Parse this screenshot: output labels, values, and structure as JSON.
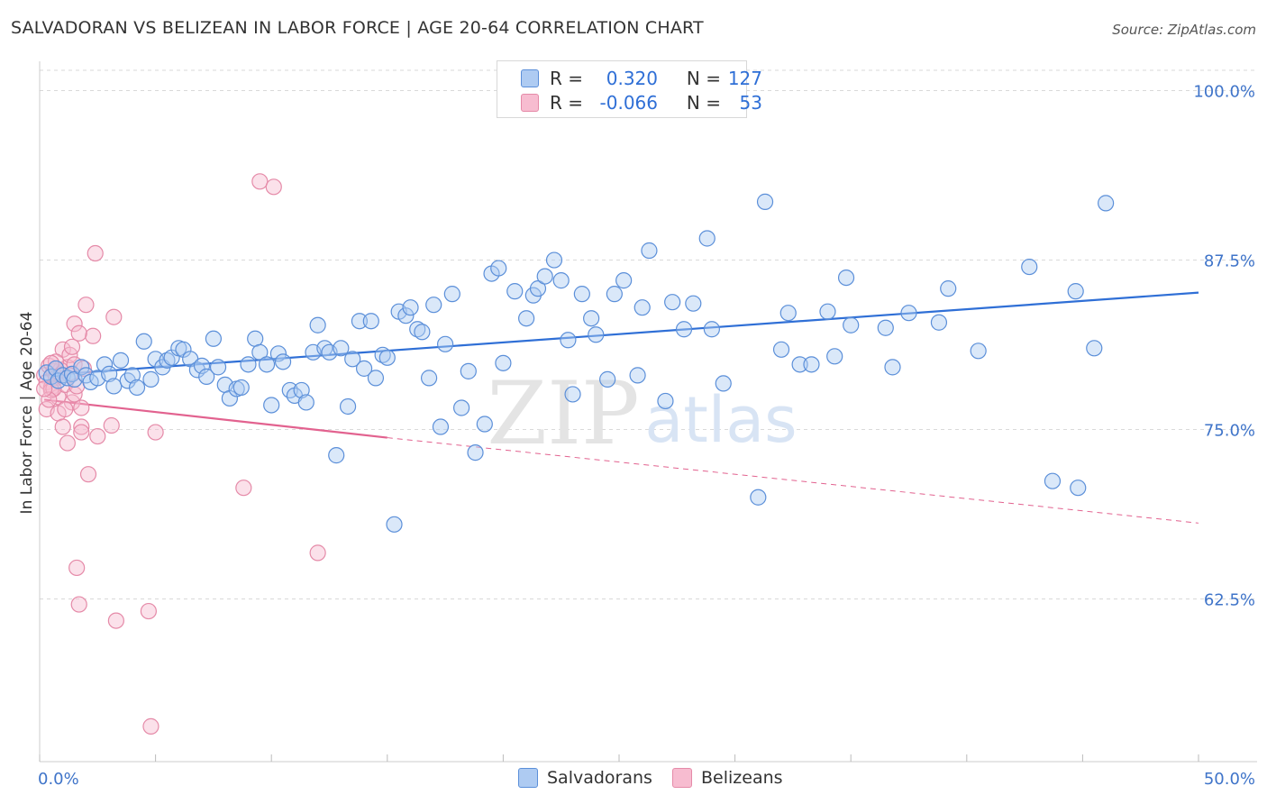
{
  "header": {
    "title": "SALVADORAN VS BELIZEAN IN LABOR FORCE | AGE 20-64 CORRELATION CHART",
    "source": "Source: ZipAtlas.com"
  },
  "legend": {
    "rows": [
      {
        "r_label": "R =",
        "r_value": "0.320",
        "n_label": "N =",
        "n_value": "127",
        "color": "#a9c7f0"
      },
      {
        "r_label": "R =",
        "r_value": "-0.066",
        "n_label": "N =",
        "n_value": "53",
        "color": "#f6b8cb"
      }
    ]
  },
  "watermark": {
    "zip": "ZIP",
    "atlas": "atlas"
  },
  "colors": {
    "blue_fill": "#aecbf2",
    "blue_stroke": "#5b8fd9",
    "blue_line": "#2f6fd6",
    "pink_fill": "#f7bcd0",
    "pink_stroke": "#e58aa8",
    "pink_line": "#e2628f",
    "axis_text": "#3f74c9",
    "grid": "#d9d9d9"
  },
  "chart_data": {
    "type": "scatter",
    "title": "SALVADORAN VS BELIZEAN IN LABOR FORCE | AGE 20-64 CORRELATION CHART",
    "xlabel": "",
    "ylabel": "In Labor Force | Age 20-64",
    "xlim": [
      0,
      50
    ],
    "ylim": [
      50.5,
      101.5
    ],
    "x_tick_labels": [
      "0.0%",
      "50.0%"
    ],
    "y_ticks": [
      62.5,
      75.0,
      87.5,
      100.0
    ],
    "y_tick_labels": [
      "62.5%",
      "75.0%",
      "87.5%",
      "100.0%"
    ],
    "grid": true,
    "legend_position": "top-center",
    "series": [
      {
        "name": "Salvadorans",
        "r": 0.32,
        "n": 127,
        "trend": {
          "x": [
            0.2,
            50
          ],
          "y": [
            79.0,
            85.1
          ]
        },
        "points": [
          [
            0.3,
            79.2
          ],
          [
            0.5,
            78.9
          ],
          [
            0.7,
            79.5
          ],
          [
            0.8,
            78.6
          ],
          [
            1.0,
            79.0
          ],
          [
            1.2,
            78.8
          ],
          [
            1.4,
            79.1
          ],
          [
            1.5,
            78.7
          ],
          [
            1.8,
            79.6
          ],
          [
            2.0,
            79.0
          ],
          [
            2.2,
            78.5
          ],
          [
            2.5,
            78.8
          ],
          [
            2.8,
            79.8
          ],
          [
            3.0,
            79.1
          ],
          [
            3.2,
            78.2
          ],
          [
            3.5,
            80.1
          ],
          [
            3.8,
            78.6
          ],
          [
            4.0,
            79.0
          ],
          [
            4.2,
            78.1
          ],
          [
            4.5,
            81.5
          ],
          [
            4.8,
            78.7
          ],
          [
            5.0,
            80.2
          ],
          [
            5.3,
            79.6
          ],
          [
            5.5,
            80.1
          ],
          [
            5.7,
            80.3
          ],
          [
            6.0,
            81.0
          ],
          [
            6.2,
            80.9
          ],
          [
            6.5,
            80.2
          ],
          [
            6.8,
            79.4
          ],
          [
            7.0,
            79.7
          ],
          [
            7.2,
            78.9
          ],
          [
            7.5,
            81.7
          ],
          [
            7.7,
            79.6
          ],
          [
            8.0,
            78.3
          ],
          [
            8.2,
            77.3
          ],
          [
            8.5,
            78.0
          ],
          [
            8.7,
            78.1
          ],
          [
            9.0,
            79.8
          ],
          [
            9.3,
            81.7
          ],
          [
            9.5,
            80.7
          ],
          [
            9.8,
            79.8
          ],
          [
            10.0,
            76.8
          ],
          [
            10.3,
            80.6
          ],
          [
            10.5,
            80.0
          ],
          [
            10.8,
            77.9
          ],
          [
            11.0,
            77.5
          ],
          [
            11.3,
            77.9
          ],
          [
            11.5,
            77.0
          ],
          [
            11.8,
            80.7
          ],
          [
            12.0,
            82.7
          ],
          [
            12.3,
            81.0
          ],
          [
            12.5,
            80.7
          ],
          [
            12.8,
            73.1
          ],
          [
            13.0,
            81.0
          ],
          [
            13.3,
            76.7
          ],
          [
            13.5,
            80.2
          ],
          [
            13.8,
            83.0
          ],
          [
            14.0,
            79.5
          ],
          [
            14.3,
            83.0
          ],
          [
            14.5,
            78.8
          ],
          [
            14.8,
            80.5
          ],
          [
            15.0,
            80.3
          ],
          [
            15.3,
            68.0
          ],
          [
            15.5,
            83.7
          ],
          [
            15.8,
            83.4
          ],
          [
            16.0,
            84.0
          ],
          [
            16.3,
            82.4
          ],
          [
            16.5,
            82.2
          ],
          [
            16.8,
            78.8
          ],
          [
            17.0,
            84.2
          ],
          [
            17.3,
            75.2
          ],
          [
            17.5,
            81.3
          ],
          [
            17.8,
            85.0
          ],
          [
            18.2,
            76.6
          ],
          [
            18.5,
            79.3
          ],
          [
            18.8,
            73.3
          ],
          [
            19.2,
            75.4
          ],
          [
            19.5,
            86.5
          ],
          [
            19.8,
            86.9
          ],
          [
            20.0,
            79.9
          ],
          [
            20.5,
            85.2
          ],
          [
            21.0,
            83.2
          ],
          [
            21.3,
            84.9
          ],
          [
            21.5,
            85.4
          ],
          [
            21.8,
            86.3
          ],
          [
            22.2,
            87.5
          ],
          [
            22.5,
            86.0
          ],
          [
            22.8,
            81.6
          ],
          [
            23.0,
            77.6
          ],
          [
            23.4,
            85.0
          ],
          [
            23.8,
            83.2
          ],
          [
            24.0,
            82.0
          ],
          [
            24.5,
            78.7
          ],
          [
            24.8,
            85.0
          ],
          [
            25.2,
            86.0
          ],
          [
            25.8,
            79.0
          ],
          [
            26.0,
            84.0
          ],
          [
            26.3,
            88.2
          ],
          [
            27.0,
            77.1
          ],
          [
            27.3,
            84.4
          ],
          [
            27.8,
            82.4
          ],
          [
            28.2,
            84.3
          ],
          [
            28.8,
            89.1
          ],
          [
            29.0,
            82.4
          ],
          [
            29.5,
            78.4
          ],
          [
            31.0,
            70.0
          ],
          [
            31.3,
            91.8
          ],
          [
            32.0,
            80.9
          ],
          [
            32.3,
            83.6
          ],
          [
            32.8,
            79.8
          ],
          [
            33.3,
            79.8
          ],
          [
            34.0,
            83.7
          ],
          [
            34.3,
            80.4
          ],
          [
            34.8,
            86.2
          ],
          [
            35.0,
            82.7
          ],
          [
            36.5,
            82.5
          ],
          [
            37.5,
            83.6
          ],
          [
            38.8,
            82.9
          ],
          [
            39.2,
            85.4
          ],
          [
            40.5,
            80.8
          ],
          [
            46.0,
            91.7
          ],
          [
            36.8,
            79.6
          ],
          [
            42.7,
            87.0
          ],
          [
            44.7,
            85.2
          ],
          [
            45.5,
            81.0
          ],
          [
            43.7,
            71.2
          ],
          [
            44.8,
            70.7
          ]
        ]
      },
      {
        "name": "Belizeans",
        "r": -0.066,
        "n": 53,
        "trend": {
          "x": [
            0.2,
            15
          ],
          "y": [
            77.2,
            74.4
          ]
        },
        "trend_dashed": {
          "x": [
            15,
            50
          ],
          "y": [
            74.4,
            68.1
          ]
        },
        "points": [
          [
            0.2,
            79.0
          ],
          [
            0.3,
            78.5
          ],
          [
            0.4,
            79.7
          ],
          [
            0.5,
            78.1
          ],
          [
            0.6,
            79.3
          ],
          [
            0.7,
            78.8
          ],
          [
            0.8,
            77.4
          ],
          [
            0.9,
            79.1
          ],
          [
            1.0,
            80.9
          ],
          [
            1.1,
            78.3
          ],
          [
            1.2,
            79.6
          ],
          [
            1.3,
            80.5
          ],
          [
            1.4,
            77.0
          ],
          [
            1.5,
            79.8
          ],
          [
            0.3,
            76.5
          ],
          [
            0.5,
            77.9
          ],
          [
            0.8,
            76.2
          ],
          [
            1.0,
            75.2
          ],
          [
            1.2,
            74.0
          ],
          [
            1.5,
            77.6
          ],
          [
            1.8,
            76.6
          ],
          [
            1.8,
            75.2
          ],
          [
            1.8,
            74.8
          ],
          [
            2.0,
            84.2
          ],
          [
            2.1,
            71.7
          ],
          [
            2.3,
            81.9
          ],
          [
            2.4,
            88.0
          ],
          [
            2.5,
            74.5
          ],
          [
            3.1,
            75.3
          ],
          [
            3.2,
            83.3
          ],
          [
            1.5,
            82.8
          ],
          [
            1.7,
            82.1
          ],
          [
            1.6,
            64.8
          ],
          [
            1.7,
            62.1
          ],
          [
            3.3,
            60.9
          ],
          [
            4.7,
            61.6
          ],
          [
            4.8,
            53.1
          ],
          [
            5.0,
            74.8
          ],
          [
            8.8,
            70.7
          ],
          [
            9.5,
            93.3
          ],
          [
            10.1,
            92.9
          ],
          [
            12.0,
            65.9
          ],
          [
            0.6,
            78.0
          ],
          [
            0.9,
            79.4
          ],
          [
            1.1,
            76.5
          ],
          [
            0.4,
            77.2
          ],
          [
            1.3,
            79.0
          ],
          [
            0.7,
            80.0
          ],
          [
            1.9,
            79.5
          ],
          [
            1.6,
            78.2
          ],
          [
            0.2,
            78.0
          ],
          [
            0.5,
            79.9
          ],
          [
            1.4,
            81.1
          ]
        ]
      }
    ]
  },
  "bottom_legend": {
    "salvadorans": "Salvadorans",
    "belizeans": "Belizeans"
  }
}
